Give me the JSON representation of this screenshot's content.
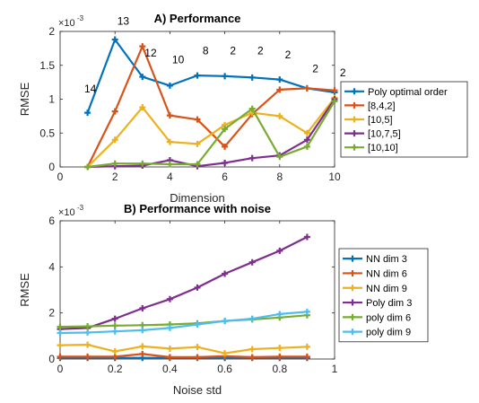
{
  "chart_data": [
    {
      "type": "line",
      "title": "A) Performance",
      "xlabel": "Dimension",
      "ylabel": "RMSE",
      "y_exponent_label": "×10",
      "y_exponent": "-3",
      "xlim": [
        0,
        10
      ],
      "ylim": [
        0,
        2
      ],
      "xticks": [
        "0",
        "2",
        "4",
        "6",
        "8",
        "10"
      ],
      "yticks": [
        "0",
        "0.5",
        "1",
        "1.5",
        "2"
      ],
      "grid": false,
      "legend_position": "right",
      "series": [
        {
          "name": "Poly optimal order",
          "color": "#0072BD",
          "x": [
            1,
            2,
            3,
            4,
            5,
            6,
            7,
            8,
            9,
            10
          ],
          "values": [
            0.8,
            1.88,
            1.33,
            1.2,
            1.35,
            1.34,
            1.32,
            1.29,
            1.16,
            1.1
          ]
        },
        {
          "name": "[8,4,2]",
          "color": "#D95319",
          "x": [
            1,
            2,
            3,
            4,
            5,
            6,
            7,
            8,
            9,
            10
          ],
          "values": [
            0.0,
            0.82,
            1.78,
            0.76,
            0.7,
            0.3,
            0.78,
            1.14,
            1.16,
            1.13
          ]
        },
        {
          "name": "[10,5]",
          "color": "#EDB120",
          "x": [
            1,
            2,
            3,
            4,
            5,
            6,
            7,
            8,
            9,
            10
          ],
          "values": [
            0.0,
            0.4,
            0.88,
            0.37,
            0.34,
            0.62,
            0.8,
            0.75,
            0.5,
            1.02
          ]
        },
        {
          "name": "[10,7,5]",
          "color": "#7E2F8E",
          "x": [
            1,
            2,
            3,
            4,
            5,
            6,
            7,
            8,
            9,
            10
          ],
          "values": [
            0.0,
            0.01,
            0.02,
            0.1,
            0.01,
            0.06,
            0.13,
            0.17,
            0.4,
            1.0
          ]
        },
        {
          "name": "[10,10]",
          "color": "#77AC30",
          "x": [
            1,
            2,
            3,
            4,
            5,
            6,
            7,
            8,
            9,
            10
          ],
          "values": [
            0.0,
            0.05,
            0.05,
            0.04,
            0.04,
            0.56,
            0.86,
            0.15,
            0.3,
            0.97
          ]
        }
      ],
      "annotations": [
        {
          "text": "14",
          "x": 1.1,
          "y": 1.1
        },
        {
          "text": "13",
          "x": 2.3,
          "y": 2.1
        },
        {
          "text": "12",
          "x": 3.3,
          "y": 1.63
        },
        {
          "text": "10",
          "x": 4.3,
          "y": 1.53
        },
        {
          "text": "8",
          "x": 5.3,
          "y": 1.66
        },
        {
          "text": "2",
          "x": 6.3,
          "y": 1.66
        },
        {
          "text": "2",
          "x": 7.3,
          "y": 1.66
        },
        {
          "text": "2",
          "x": 8.3,
          "y": 1.6
        },
        {
          "text": "2",
          "x": 9.3,
          "y": 1.4
        },
        {
          "text": "2",
          "x": 10.3,
          "y": 1.34
        }
      ]
    },
    {
      "type": "line",
      "title": "B) Performance with noise",
      "xlabel": "Noise std",
      "ylabel": "RMSE",
      "y_exponent_label": "×10",
      "y_exponent": "-3",
      "xlim": [
        0,
        1
      ],
      "ylim": [
        0,
        6
      ],
      "xticks": [
        "0",
        "0.2",
        "0.4",
        "0.6",
        "0.8",
        "1"
      ],
      "yticks": [
        "0",
        "2",
        "4",
        "6"
      ],
      "grid": false,
      "legend_position": "right",
      "series": [
        {
          "name": "NN dim 3",
          "color": "#0072BD",
          "x": [
            0,
            0.1,
            0.2,
            0.3,
            0.4,
            0.5,
            0.6,
            0.7,
            0.8,
            0.9
          ],
          "values": [
            0.05,
            0.05,
            0.05,
            0.05,
            0.05,
            0.05,
            0.05,
            0.05,
            0.05,
            0.05
          ]
        },
        {
          "name": "NN dim 6",
          "color": "#D95319",
          "x": [
            0,
            0.1,
            0.2,
            0.3,
            0.4,
            0.5,
            0.6,
            0.7,
            0.8,
            0.9
          ],
          "values": [
            0.1,
            0.1,
            0.1,
            0.22,
            0.08,
            0.08,
            0.12,
            0.08,
            0.1,
            0.1
          ]
        },
        {
          "name": "NN dim 9",
          "color": "#EDB120",
          "x": [
            0,
            0.1,
            0.2,
            0.3,
            0.4,
            0.5,
            0.6,
            0.7,
            0.8,
            0.9
          ],
          "values": [
            0.6,
            0.62,
            0.33,
            0.55,
            0.45,
            0.52,
            0.25,
            0.43,
            0.48,
            0.53
          ]
        },
        {
          "name": "Poly dim 3",
          "color": "#7E2F8E",
          "x": [
            0,
            0.1,
            0.2,
            0.3,
            0.4,
            0.5,
            0.6,
            0.7,
            0.8,
            0.9
          ],
          "values": [
            1.3,
            1.35,
            1.75,
            2.2,
            2.6,
            3.1,
            3.7,
            4.2,
            4.7,
            5.3
          ]
        },
        {
          "name": "poly dim 6",
          "color": "#77AC30",
          "x": [
            0,
            0.1,
            0.2,
            0.3,
            0.4,
            0.5,
            0.6,
            0.7,
            0.8,
            0.9
          ],
          "values": [
            1.4,
            1.42,
            1.45,
            1.47,
            1.5,
            1.55,
            1.65,
            1.72,
            1.8,
            1.9
          ]
        },
        {
          "name": "poly dim 9",
          "color": "#4DBEEE",
          "x": [
            0,
            0.1,
            0.2,
            0.3,
            0.4,
            0.5,
            0.6,
            0.7,
            0.8,
            0.9
          ],
          "values": [
            1.13,
            1.15,
            1.2,
            1.25,
            1.35,
            1.5,
            1.65,
            1.75,
            1.95,
            2.05
          ]
        }
      ]
    }
  ]
}
